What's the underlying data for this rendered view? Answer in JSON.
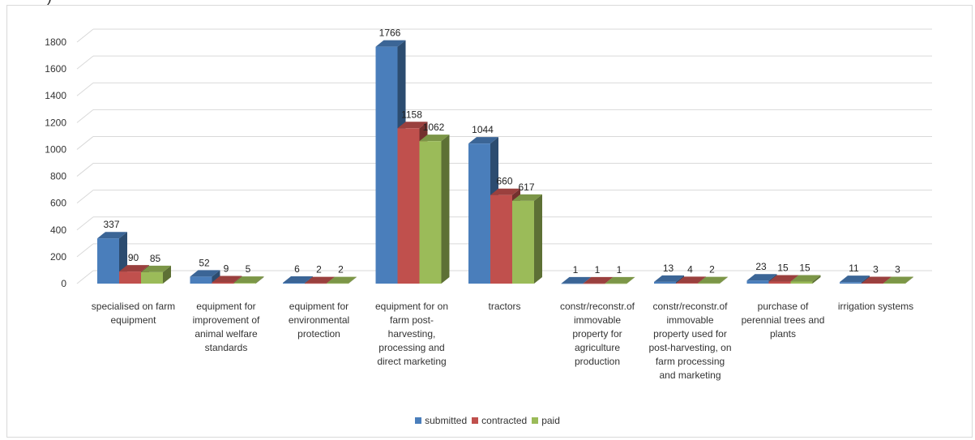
{
  "page": {
    "top_snippet": ")"
  },
  "chart_data": {
    "type": "bar",
    "title": "",
    "xlabel": "",
    "ylabel": "",
    "ylim": [
      0,
      1800
    ],
    "yticks": [
      0,
      200,
      400,
      600,
      800,
      1000,
      1200,
      1400,
      1600,
      1800
    ],
    "grid": true,
    "legend_position": "bottom",
    "categories": [
      [
        "specialised on farm",
        "equipment"
      ],
      [
        "equipment for",
        "improvement of",
        "animal welfare",
        "standards"
      ],
      [
        "equipment for",
        "environmental",
        "protection"
      ],
      [
        "equipment for on",
        "farm post-",
        "harvesting,",
        "processing and",
        "direct marketing"
      ],
      [
        "tractors"
      ],
      [
        "constr/reconstr.of",
        "immovable",
        "property for",
        "agriculture",
        "production"
      ],
      [
        "constr/reconstr.of",
        "immovable",
        "property used for",
        "post-harvesting, on",
        "farm processing",
        "and marketing"
      ],
      [
        "purchase of",
        "perennial trees and",
        "plants"
      ],
      [
        "irrigation systems"
      ]
    ],
    "series": [
      {
        "name": "submitted",
        "color": "#4a7ebb",
        "values": [
          337,
          52,
          6,
          1766,
          1044,
          1,
          13,
          23,
          11
        ]
      },
      {
        "name": "contracted",
        "color": "#c0504d",
        "values": [
          90,
          9,
          2,
          1158,
          660,
          1,
          4,
          15,
          3
        ]
      },
      {
        "name": "paid",
        "color": "#9bbb59",
        "values": [
          85,
          5,
          2,
          1062,
          617,
          1,
          2,
          15,
          3
        ]
      }
    ]
  }
}
